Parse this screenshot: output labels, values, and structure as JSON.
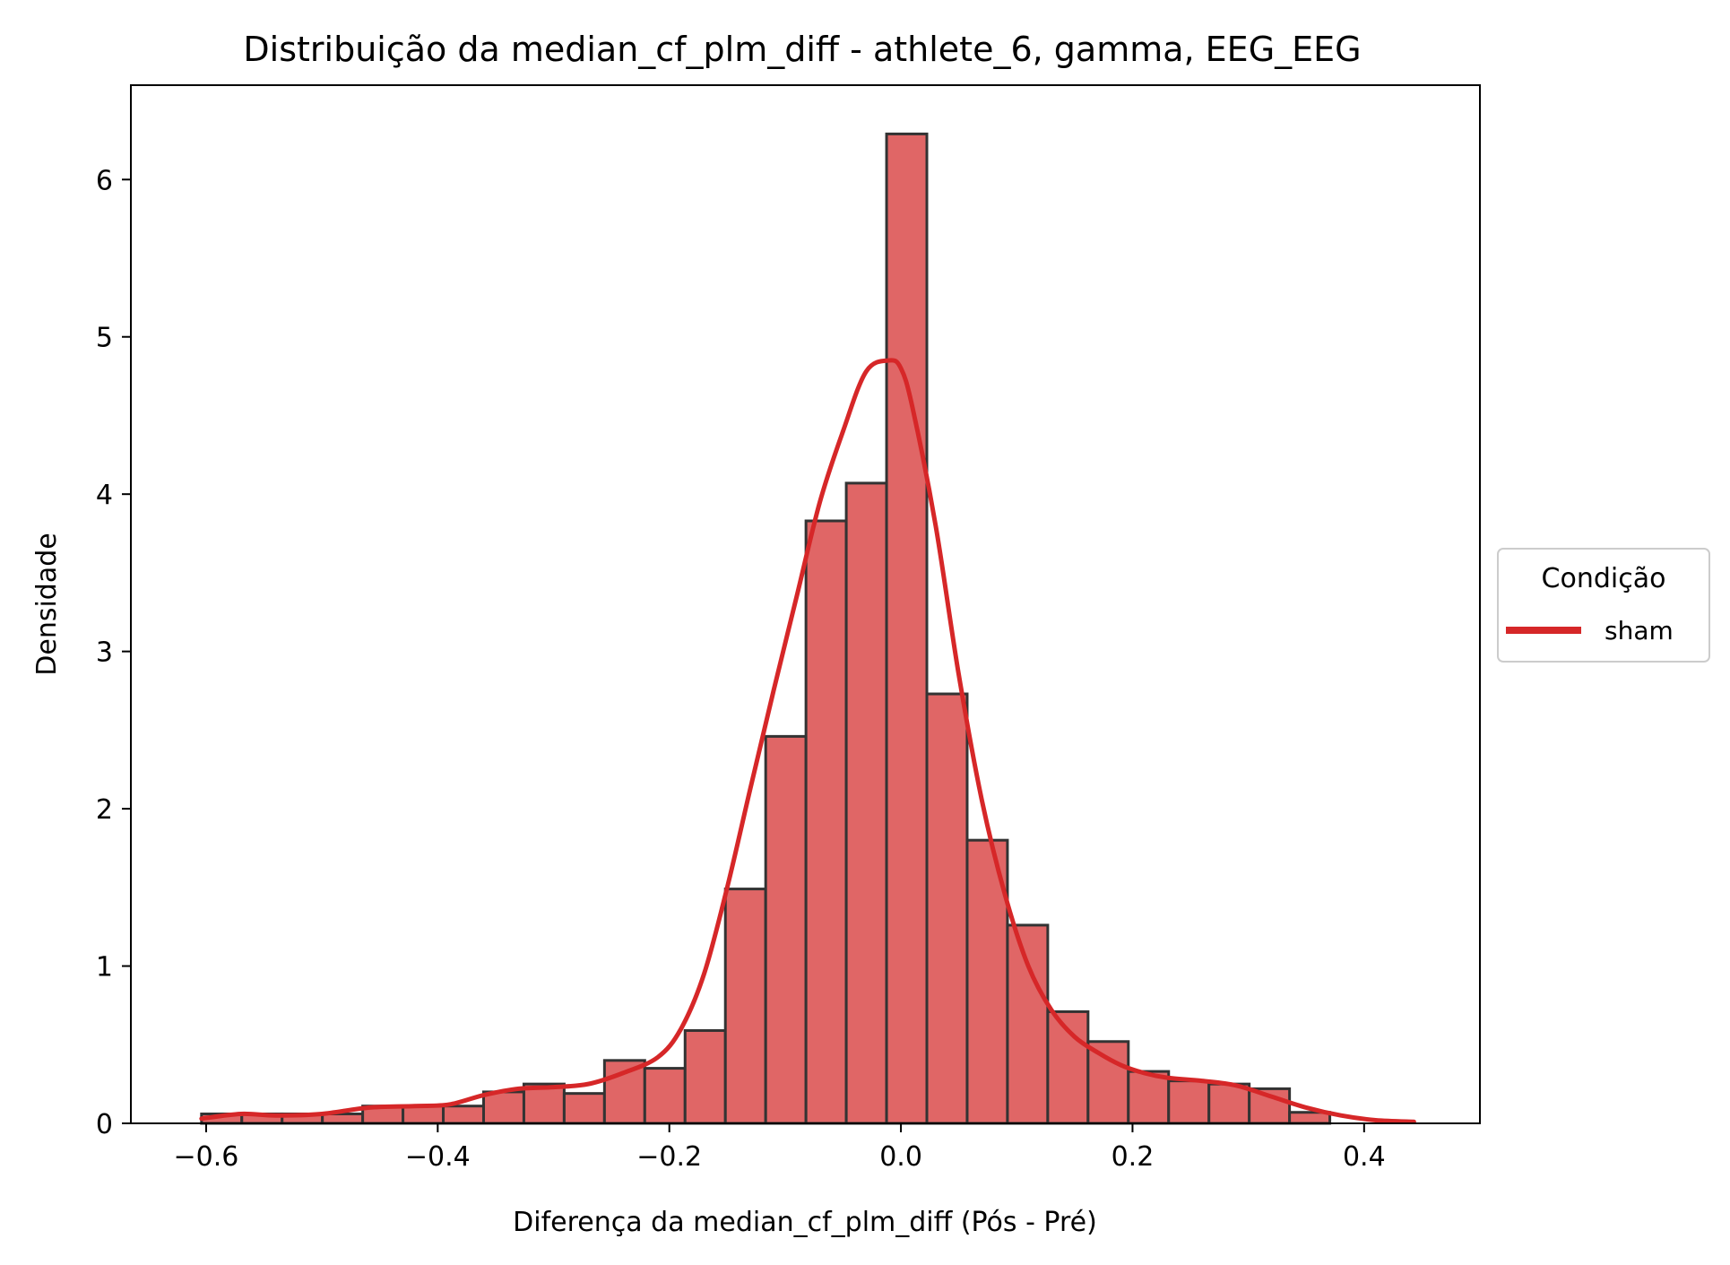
{
  "chart_data": {
    "type": "bar",
    "title": "Distribuição da median_cf_plm_diff - athlete_6, gamma, EEG_EEG",
    "xlabel": "Diferença da median_cf_plm_diff (Pós - Pré)",
    "ylabel": "Densidade",
    "xlim": [
      -0.665,
      0.5
    ],
    "ylim": [
      0,
      6.6
    ],
    "xticks": [
      -0.6,
      -0.4,
      -0.2,
      0.0,
      0.2,
      0.4
    ],
    "xtick_labels": [
      "−0.6",
      "−0.4",
      "−0.2",
      "0.0",
      "0.2",
      "0.4"
    ],
    "yticks": [
      0,
      1,
      2,
      3,
      4,
      5,
      6
    ],
    "ytick_labels": [
      "0",
      "1",
      "2",
      "3",
      "4",
      "5",
      "6"
    ],
    "grid": false,
    "legend": {
      "title": "Condição",
      "placement": "outside-right",
      "entries": [
        "sham"
      ]
    },
    "colors": {
      "bar_fill": "#e06666",
      "bar_edge": "#333333",
      "kde_line": "#d62728"
    },
    "histogram": {
      "bin_start": -0.604,
      "bin_width": 0.0348,
      "densities": [
        0.06,
        0.06,
        0.06,
        0.06,
        0.11,
        0.11,
        0.11,
        0.2,
        0.25,
        0.19,
        0.4,
        0.35,
        0.59,
        1.49,
        2.46,
        3.83,
        4.07,
        6.29,
        2.73,
        1.8,
        1.26,
        0.71,
        0.52,
        0.33,
        0.27,
        0.25,
        0.22,
        0.07,
        0.0,
        0.0
      ]
    },
    "series": [
      {
        "name": "sham",
        "type": "line",
        "x": [
          -0.604,
          -0.57,
          -0.54,
          -0.5,
          -0.46,
          -0.42,
          -0.39,
          -0.36,
          -0.33,
          -0.3,
          -0.27,
          -0.24,
          -0.21,
          -0.19,
          -0.17,
          -0.15,
          -0.13,
          -0.11,
          -0.09,
          -0.07,
          -0.05,
          -0.03,
          -0.01,
          0.0,
          0.01,
          0.03,
          0.05,
          0.07,
          0.09,
          0.11,
          0.13,
          0.15,
          0.17,
          0.19,
          0.21,
          0.23,
          0.26,
          0.29,
          0.32,
          0.35,
          0.38,
          0.41,
          0.443
        ],
        "y": [
          0.03,
          0.06,
          0.05,
          0.06,
          0.1,
          0.11,
          0.12,
          0.18,
          0.22,
          0.23,
          0.25,
          0.32,
          0.42,
          0.6,
          0.95,
          1.5,
          2.13,
          2.75,
          3.35,
          3.95,
          4.4,
          4.78,
          4.85,
          4.8,
          4.55,
          3.8,
          2.85,
          2.05,
          1.45,
          1.0,
          0.72,
          0.55,
          0.45,
          0.37,
          0.32,
          0.29,
          0.27,
          0.24,
          0.17,
          0.1,
          0.05,
          0.02,
          0.01
        ]
      }
    ]
  }
}
